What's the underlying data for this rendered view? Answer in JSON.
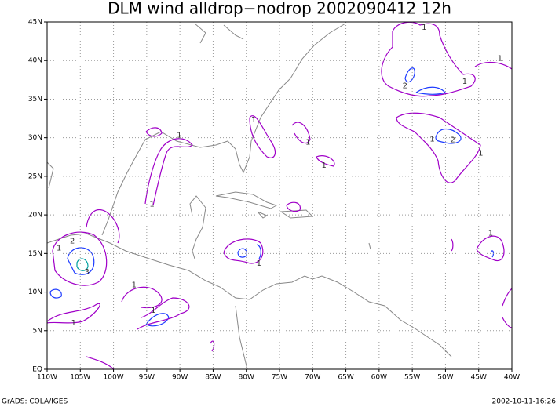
{
  "map": {
    "title": "DLM wind alldrop−nodrop 2002090412 12h",
    "footer_left": "GrADS: COLA/IGES",
    "footer_right": "2002-10-11-16:26",
    "xlim": [
      -110,
      -40
    ],
    "ylim": [
      0,
      45
    ],
    "grid": true,
    "xticks": [
      {
        "value": -110,
        "label": "110W"
      },
      {
        "value": -105,
        "label": "105W"
      },
      {
        "value": -100,
        "label": "100W"
      },
      {
        "value": -95,
        "label": "95W"
      },
      {
        "value": -90,
        "label": "90W"
      },
      {
        "value": -85,
        "label": "85W"
      },
      {
        "value": -80,
        "label": "80W"
      },
      {
        "value": -75,
        "label": "75W"
      },
      {
        "value": -70,
        "label": "70W"
      },
      {
        "value": -65,
        "label": "65W"
      },
      {
        "value": -60,
        "label": "60W"
      },
      {
        "value": -55,
        "label": "55W"
      },
      {
        "value": -50,
        "label": "50W"
      },
      {
        "value": -45,
        "label": "45W"
      },
      {
        "value": -40,
        "label": "40W"
      }
    ],
    "yticks": [
      {
        "value": 0,
        "label": "EQ"
      },
      {
        "value": 5,
        "label": "5N"
      },
      {
        "value": 10,
        "label": "10N"
      },
      {
        "value": 15,
        "label": "15N"
      },
      {
        "value": 20,
        "label": "20N"
      },
      {
        "value": 25,
        "label": "25N"
      },
      {
        "value": 30,
        "label": "30N"
      },
      {
        "value": 35,
        "label": "35N"
      },
      {
        "value": 40,
        "label": "40N"
      },
      {
        "value": 45,
        "label": "45N"
      }
    ],
    "contour_labels": [
      {
        "label": "1",
        "lon": -108.2,
        "lat": 15.7
      },
      {
        "label": "2",
        "lon": -106.2,
        "lat": 16.6
      },
      {
        "label": "3",
        "lon": -104,
        "lat": 12.6
      },
      {
        "label": "1",
        "lon": -106,
        "lat": 6
      },
      {
        "label": "1",
        "lon": -96.9,
        "lat": 10.9
      },
      {
        "label": "1",
        "lon": -94,
        "lat": 7.6
      },
      {
        "label": "1",
        "lon": -90.1,
        "lat": 30.3
      },
      {
        "label": "1",
        "lon": -94.2,
        "lat": 21.4
      },
      {
        "label": "1",
        "lon": -78.9,
        "lat": 32.3
      },
      {
        "label": "1",
        "lon": -70.7,
        "lat": 29.4
      },
      {
        "label": "1",
        "lon": -68.3,
        "lat": 26.4
      },
      {
        "label": "1",
        "lon": -78.1,
        "lat": 13.7
      },
      {
        "label": "2",
        "lon": -56.1,
        "lat": 36.7
      },
      {
        "label": "1",
        "lon": -47.1,
        "lat": 37.3
      },
      {
        "label": "1",
        "lon": -41.8,
        "lat": 40.3
      },
      {
        "label": "1",
        "lon": -52,
        "lat": 29.8
      },
      {
        "label": "2",
        "lon": -48.9,
        "lat": 29.7
      },
      {
        "label": "1",
        "lon": -44.7,
        "lat": 28
      },
      {
        "label": "1",
        "lon": -43.2,
        "lat": 17.6
      },
      {
        "label": "1",
        "lon": -53.2,
        "lat": 44.3
      }
    ]
  }
}
